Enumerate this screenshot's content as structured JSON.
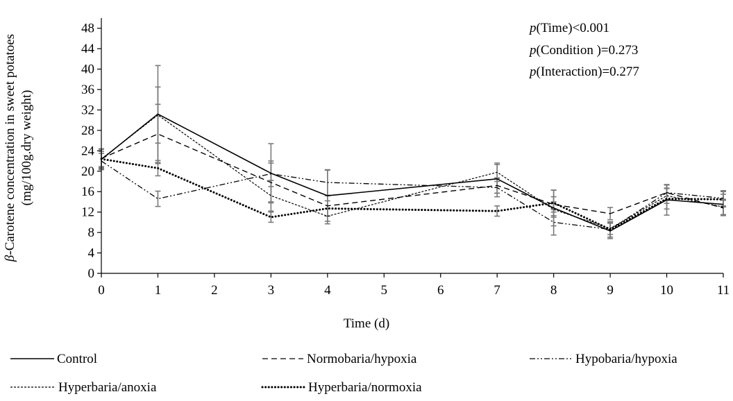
{
  "chart_data": {
    "type": "line",
    "xlabel": "Time (d)",
    "ylabel_greek": "β",
    "ylabel_line1_rest": "-Carotene concentration in sweet potatoes",
    "ylabel_line2": "(mg/100g.dry weight)",
    "ylim": [
      0,
      50
    ],
    "yticks": [
      0,
      4,
      8,
      12,
      16,
      20,
      24,
      28,
      32,
      36,
      40,
      44,
      48
    ],
    "xlim": [
      0,
      11
    ],
    "xticks": [
      0,
      1,
      2,
      3,
      4,
      5,
      6,
      7,
      8,
      9,
      10,
      11
    ],
    "grid": false,
    "legend_position": "bottom",
    "annotations": [
      {
        "p": "p",
        "rest": "(Time)<0.001"
      },
      {
        "p": "p",
        "rest": "(Condition )=0.273"
      },
      {
        "p": "p",
        "rest": "(Interaction)=0.277"
      }
    ],
    "series": [
      {
        "name": "Control",
        "style": "solid",
        "x": [
          0,
          1,
          3,
          4,
          7,
          8,
          9,
          10,
          11
        ],
        "y": [
          22.3,
          31.2,
          19.6,
          15.2,
          18.5,
          12.8,
          8.3,
          14.4,
          13.5
        ],
        "err": [
          2.0,
          9.5,
          5.8,
          5.0,
          2.8,
          3.5,
          1.5,
          3.0,
          2.0
        ]
      },
      {
        "name": "Normobaria/hypoxia",
        "style": "dashed",
        "x": [
          0,
          1,
          3,
          4,
          7,
          8,
          9,
          10,
          11
        ],
        "y": [
          22.5,
          27.3,
          17.8,
          13.2,
          17.2,
          13.5,
          11.7,
          15.8,
          12.8
        ],
        "err": [
          1.8,
          5.8,
          3.8,
          2.0,
          1.5,
          1.5,
          1.2,
          1.5,
          1.5
        ]
      },
      {
        "name": "Hypobaria/hypoxia",
        "style": "dashdotdot",
        "x": [
          0,
          1,
          3,
          4,
          7,
          8,
          9,
          10,
          11
        ],
        "y": [
          22.0,
          14.6,
          19.5,
          17.8,
          16.8,
          10.0,
          8.6,
          15.8,
          14.7
        ],
        "err": [
          1.5,
          1.5,
          2.5,
          2.5,
          1.8,
          2.5,
          1.5,
          1.5,
          1.5
        ]
      },
      {
        "name": "Hyperbaria/anoxia",
        "style": "shortdash",
        "x": [
          0,
          1,
          3,
          4,
          7,
          8,
          9,
          10,
          11
        ],
        "y": [
          22.4,
          31.0,
          15.2,
          11.2,
          19.8,
          12.5,
          8.8,
          15.2,
          13.0
        ],
        "err": [
          2.0,
          5.5,
          3.0,
          1.5,
          1.8,
          1.5,
          1.2,
          1.5,
          1.5
        ]
      },
      {
        "name": "Hyperbaria/normoxia",
        "style": "dotted",
        "x": [
          0,
          1,
          3,
          4,
          7,
          8,
          9,
          10,
          11
        ],
        "y": [
          22.4,
          20.6,
          11.0,
          12.7,
          12.2,
          13.8,
          8.6,
          14.6,
          14.5
        ],
        "err": [
          1.5,
          1.5,
          1.0,
          1.5,
          1.0,
          2.5,
          1.5,
          2.0,
          1.5
        ]
      }
    ]
  }
}
